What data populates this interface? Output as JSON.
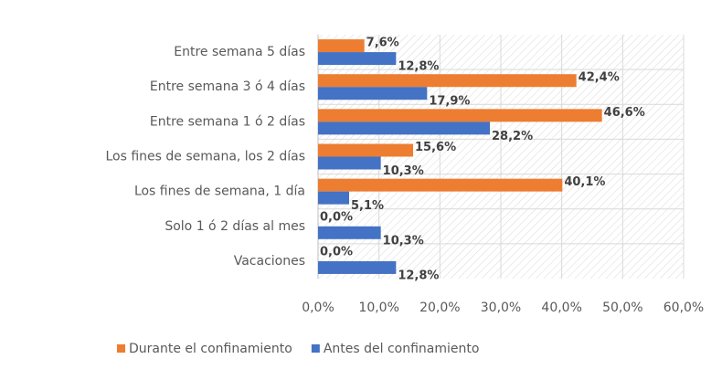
{
  "chart_data": {
    "type": "hbar",
    "categories": [
      "Entre semana 5 días",
      "Entre semana 3 ó 4 días",
      "Entre semana 1 ó 2 días",
      "Los fines de semana, los 2 días",
      "Los fines de semana, 1 día",
      "Solo 1 ó 2 días al mes",
      "Vacaciones"
    ],
    "series": [
      {
        "name": "Durante el confinamiento",
        "color": "#ed7d31",
        "values": [
          7.6,
          42.4,
          46.6,
          15.6,
          40.1,
          0.0,
          0.0
        ],
        "value_labels": [
          "7,6%",
          "42,4%",
          "46,6%",
          "15,6%",
          "40,1%",
          "0,0%",
          "0,0%"
        ]
      },
      {
        "name": "Antes del confinamiento",
        "color": "#4472c4",
        "values": [
          12.8,
          17.9,
          28.2,
          10.3,
          5.1,
          10.3,
          12.8
        ],
        "value_labels": [
          "12,8%",
          "17,9%",
          "28,2%",
          "10,3%",
          "5,1%",
          "10,3%",
          "12,8%"
        ]
      }
    ],
    "xlim": [
      0,
      60
    ],
    "xticks": [
      {
        "value": 0,
        "label": "0,0%"
      },
      {
        "value": 10,
        "label": "10,0%"
      },
      {
        "value": 20,
        "label": "20,0%"
      },
      {
        "value": 30,
        "label": "30,0%"
      },
      {
        "value": 40,
        "label": "40,0%"
      },
      {
        "value": 50,
        "label": "50,0%"
      },
      {
        "value": 60,
        "label": "60,0%"
      }
    ],
    "grid": true,
    "legend": "bottom"
  }
}
